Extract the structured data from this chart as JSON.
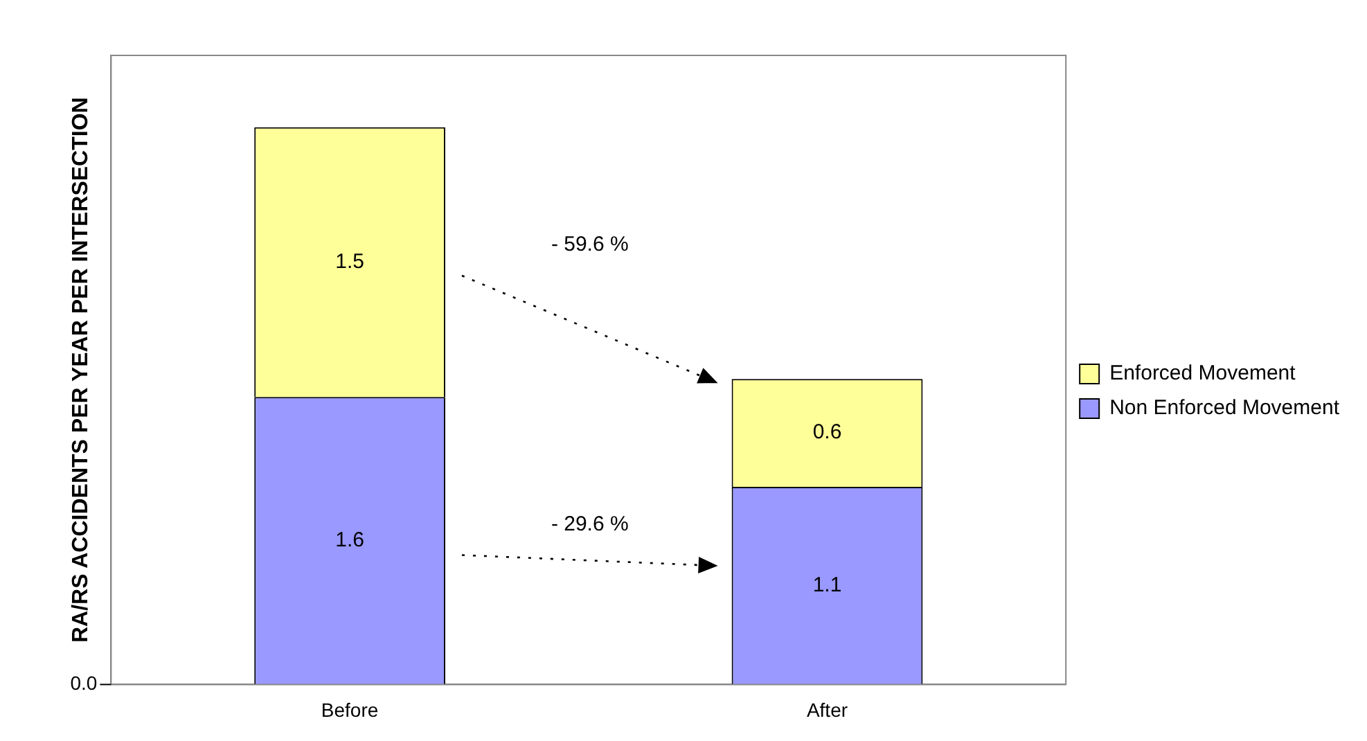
{
  "chart_data": {
    "type": "bar",
    "stacked": true,
    "ylabel": "RA/RS ACCIDENTS PER YEAR PER INTERSECTION",
    "categories": [
      "Before",
      "After"
    ],
    "series": [
      {
        "name": "Non Enforced Movement",
        "color": "#9999ff",
        "values": [
          1.6,
          1.1
        ]
      },
      {
        "name": "Enforced Movement",
        "color": "#ffff99",
        "values": [
          1.5,
          0.6
        ]
      }
    ],
    "ylim": [
      0,
      3.5
    ],
    "data_labels": true,
    "grid": false,
    "legend": "right",
    "annotations": [
      "- 29.6 %",
      "- 59.6 %",
      "0.0"
    ]
  }
}
